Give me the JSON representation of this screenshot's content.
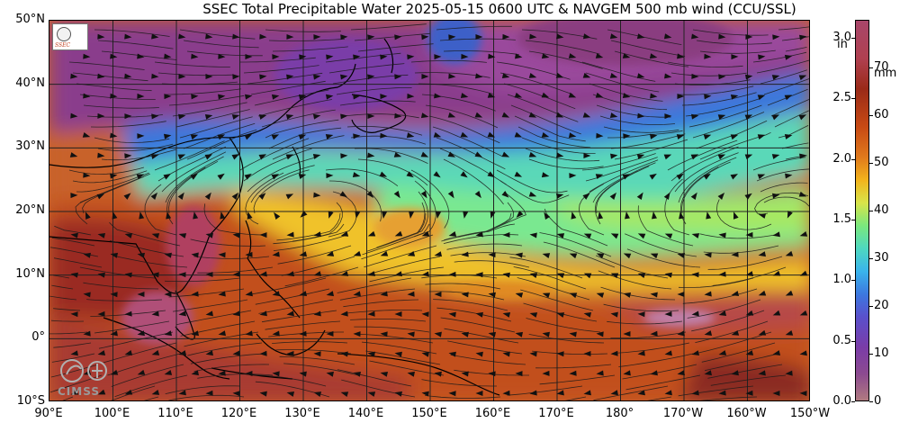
{
  "title": "SSEC Total Precipitable Water  2025-05-15 0600 UTC & NAVGEM 500 mb wind (CCU/SSL)",
  "map": {
    "lat_labels": [
      "50°N",
      "40°N",
      "30°N",
      "20°N",
      "10°N",
      "0°",
      "10°S"
    ],
    "lon_labels": [
      "90°E",
      "100°E",
      "110°E",
      "120°E",
      "130°E",
      "140°E",
      "150°E",
      "160°E",
      "170°E",
      "180°",
      "170°W",
      "160°W",
      "150°W"
    ],
    "lat_range_deg": [
      -10,
      50
    ],
    "lon_range_deg_east": [
      90,
      210
    ],
    "grid_step_deg": 10,
    "variable": "Total Precipitable Water",
    "overlay": "500 mb wind streamlines and arrows"
  },
  "colorbar": {
    "inch_unit": "in",
    "mm_unit": "mm",
    "inch_ticks": [
      "3.0",
      "2.5",
      "2.0",
      "1.5",
      "1.0",
      "0.5",
      "0.0"
    ],
    "mm_ticks": [
      "70",
      "60",
      "50",
      "40",
      "30",
      "20",
      "10",
      "0"
    ],
    "inch_range": [
      0,
      3.15
    ],
    "mm_range": [
      0,
      80
    ]
  },
  "logos": {
    "top_left": "SSEC logo",
    "bottom_left": "CIMSS",
    "top_left_text": "SSEC"
  },
  "colors": {
    "moist": "#c84a14",
    "very_moist": "#a8466a",
    "medium": "#f2b41c",
    "dry": "#3c78e0",
    "very_dry": "#7a3ca8",
    "coast": "#000000",
    "grid": "#222222"
  }
}
